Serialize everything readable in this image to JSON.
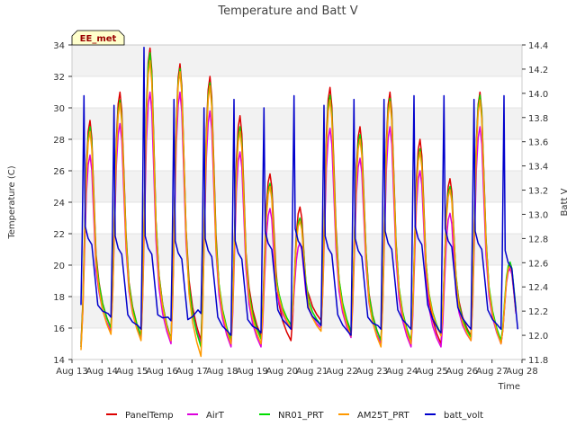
{
  "chart_data": {
    "type": "line",
    "title": "Temperature and Batt V",
    "xlabel": "Time",
    "ylabel_left": "Temperature (C)",
    "ylabel_right": "Batt V",
    "annotation": "EE_met",
    "x_ticks": [
      "Aug 13",
      "Aug 14",
      "Aug 15",
      "Aug 16",
      "Aug 17",
      "Aug 18",
      "Aug 19",
      "Aug 20",
      "Aug 21",
      "Aug 22",
      "Aug 23",
      "Aug 24",
      "Aug 25",
      "Aug 26",
      "Aug 27",
      "Aug 28"
    ],
    "y_left_ticks": [
      14,
      16,
      18,
      20,
      22,
      24,
      26,
      28,
      30,
      32,
      34
    ],
    "y_right_ticks": [
      "11.8",
      "12.0",
      "12.2",
      "12.4",
      "12.6",
      "12.8",
      "13.0",
      "13.2",
      "13.4",
      "13.6",
      "13.8",
      "14.0",
      "14.2",
      "14.4"
    ],
    "xlim": [
      13,
      28
    ],
    "ylim_left": [
      14,
      34
    ],
    "ylim_right": [
      11.8,
      14.4
    ],
    "grid": true,
    "legend_position": "bottom",
    "days": [
      13.3,
      14.3,
      15.3,
      16.3,
      17.3,
      18.3,
      19.3,
      20.3,
      21.3,
      22.3,
      23.3,
      24.3,
      25.3,
      26.3,
      27.3
    ],
    "series": [
      {
        "name": "PanelTemp",
        "color": "#dd0000",
        "axis": "left",
        "mins": [
          15.0,
          16.0,
          15.5,
          15.3,
          15.2,
          15.0,
          15.5,
          15.2,
          16.5,
          15.6,
          15.2,
          15.0,
          15.0,
          15.5,
          15.0
        ],
        "maxs": [
          29.2,
          31.0,
          33.8,
          32.8,
          32.0,
          29.5,
          25.8,
          23.7,
          31.3,
          28.8,
          31.0,
          28.0,
          25.5,
          31.0,
          20.0
        ]
      },
      {
        "name": "AirT",
        "color": "#dd00dd",
        "axis": "left",
        "mins": [
          14.8,
          15.8,
          15.3,
          15.0,
          15.0,
          14.8,
          14.8,
          16.0,
          16.0,
          15.4,
          15.0,
          14.8,
          14.8,
          15.2,
          15.0
        ],
        "maxs": [
          27.0,
          29.0,
          31.0,
          31.0,
          29.8,
          27.2,
          23.6,
          21.4,
          28.7,
          26.8,
          28.8,
          26.0,
          23.3,
          28.8,
          19.8
        ]
      },
      {
        "name": "NR01_PRT",
        "color": "#00dd00",
        "axis": "left",
        "mins": [
          14.8,
          16.0,
          15.5,
          15.3,
          14.8,
          15.2,
          15.3,
          16.2,
          16.2,
          15.8,
          15.2,
          15.2,
          15.6,
          15.4,
          15.2
        ],
        "maxs": [
          28.8,
          30.5,
          33.5,
          32.5,
          31.6,
          28.8,
          25.2,
          23.0,
          30.8,
          28.3,
          30.6,
          27.4,
          25.0,
          30.8,
          20.2
        ]
      },
      {
        "name": "AM25T_PRT",
        "color": "#ff9900",
        "axis": "left",
        "mins": [
          14.6,
          15.6,
          15.2,
          15.2,
          14.2,
          15.0,
          15.0,
          16.0,
          15.8,
          15.5,
          14.8,
          15.0,
          15.5,
          15.2,
          15.0
        ],
        "maxs": [
          28.5,
          30.3,
          33.0,
          32.3,
          31.4,
          28.5,
          25.0,
          22.8,
          30.5,
          28.0,
          30.4,
          27.2,
          24.8,
          30.5,
          20.0
        ]
      },
      {
        "name": "batt_volt",
        "color": "#0000cc",
        "axis": "right",
        "mins": [
          12.15,
          12.05,
          12.12,
          12.18,
          12.0,
          12.02,
          12.05,
          12.08,
          12.0,
          12.05,
          12.05,
          12.02,
          12.05,
          12.05,
          12.15
        ],
        "maxs": [
          13.98,
          13.9,
          14.38,
          13.95,
          13.88,
          13.95,
          13.88,
          13.98,
          13.9,
          13.95,
          13.95,
          13.98,
          13.98,
          13.95,
          13.98
        ],
        "rest": [
          12.8,
          12.72,
          12.72,
          12.68,
          12.7,
          12.68,
          12.76,
          12.78,
          12.72,
          12.7,
          12.76,
          12.8,
          12.78,
          12.76,
          12.6
        ]
      }
    ]
  }
}
